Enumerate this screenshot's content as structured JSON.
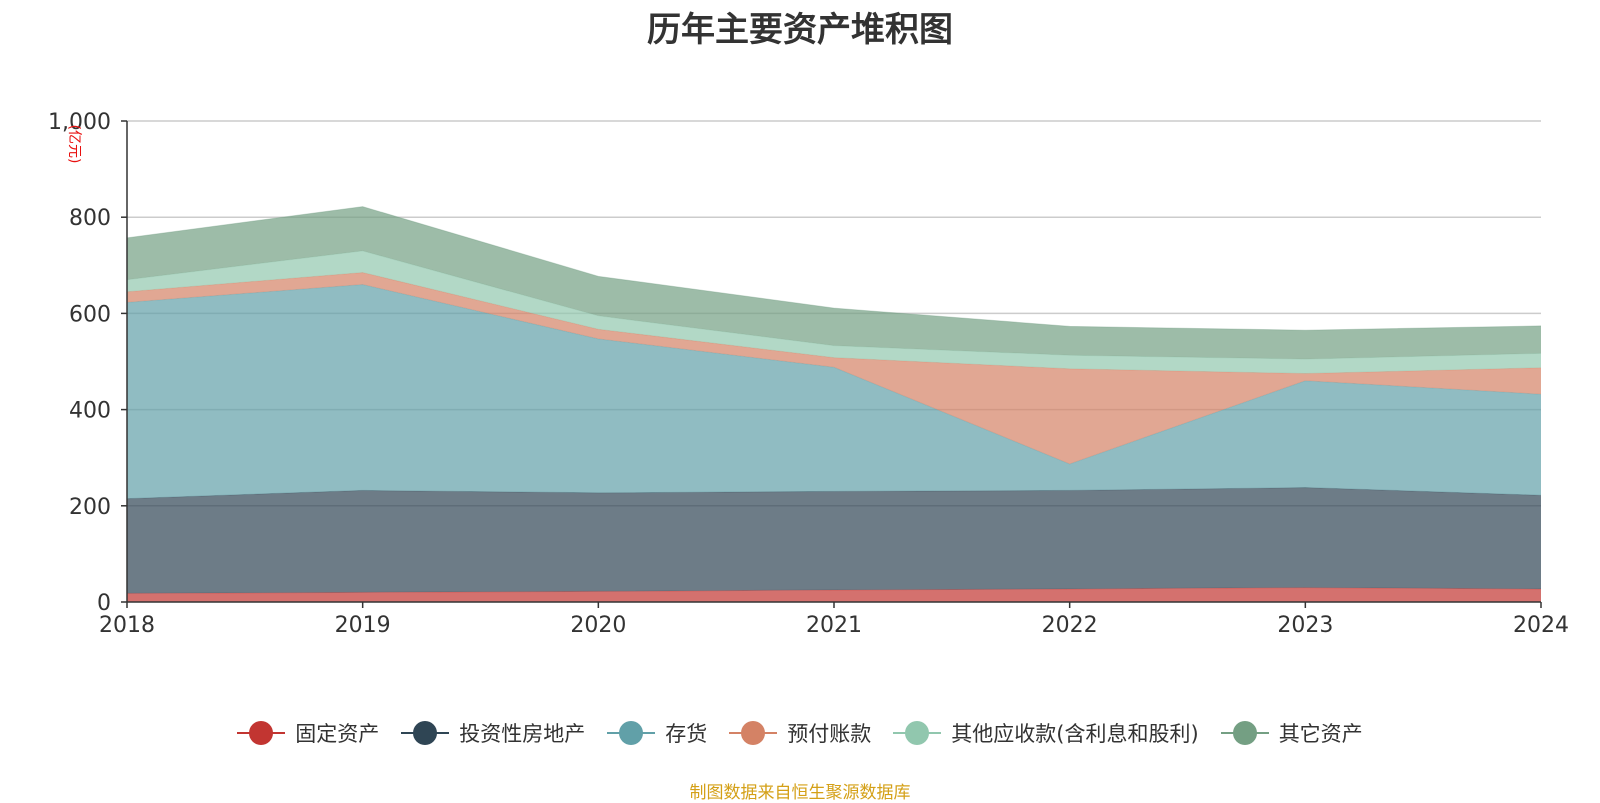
{
  "title": "历年主要资产堆积图",
  "source": "制图数据来自恒生聚源数据库",
  "chart_data": {
    "type": "area",
    "stacked": true,
    "title": "历年主要资产堆积图",
    "ylabel": "(亿元)",
    "xlabel": "",
    "x": [
      "2018",
      "2019",
      "2020",
      "2021",
      "2022",
      "2023",
      "2024"
    ],
    "ylim": [
      0,
      1000
    ],
    "yticks": [
      0,
      200,
      400,
      600,
      800,
      1000
    ],
    "ytick_labels": [
      "0",
      "200",
      "400",
      "600",
      "800",
      "1,000"
    ],
    "grid": true,
    "legend_position": "bottom",
    "series": [
      {
        "name": "固定资产",
        "color": "#c23531",
        "values": [
          18,
          20,
          22,
          25,
          27,
          30,
          27
        ]
      },
      {
        "name": "投资性房地产",
        "color": "#2f4554",
        "values": [
          197,
          212,
          205,
          205,
          205,
          208,
          195
        ]
      },
      {
        "name": "存货",
        "color": "#61a0a8",
        "values": [
          408,
          428,
          320,
          258,
          55,
          222,
          210
        ]
      },
      {
        "name": "预付账款",
        "color": "#d48265",
        "values": [
          22,
          25,
          20,
          20,
          198,
          15,
          55
        ]
      },
      {
        "name": "其他应收款(含利息和股利)",
        "color": "#91c7ae",
        "values": [
          25,
          45,
          28,
          25,
          28,
          30,
          30
        ]
      },
      {
        "name": "其它资产",
        "color": "#749f83",
        "values": [
          87,
          92,
          82,
          78,
          60,
          60,
          57
        ]
      }
    ]
  }
}
